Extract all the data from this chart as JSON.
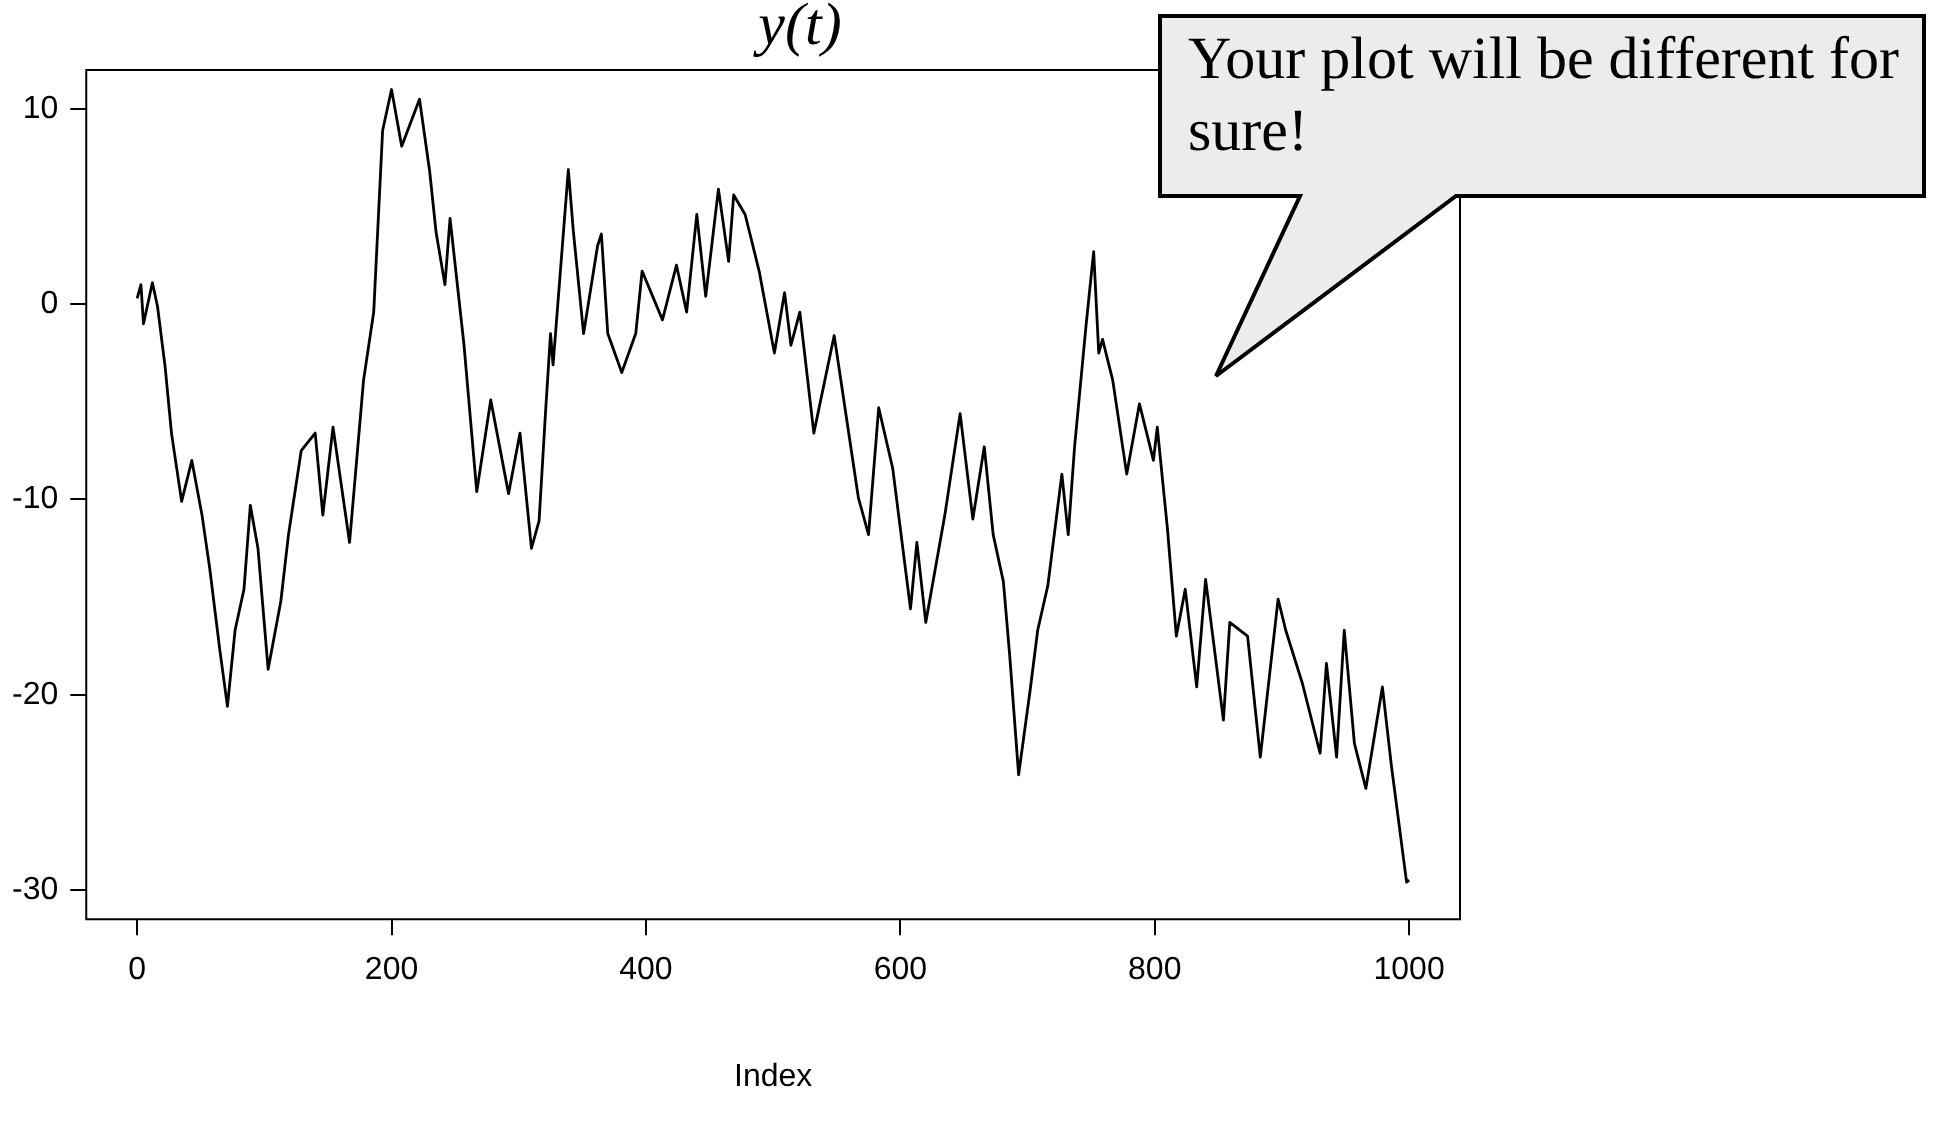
{
  "chart_data": {
    "type": "line",
    "title": "y(t)",
    "xlabel": "Index",
    "xlim": [
      -40,
      1040
    ],
    "ylim": [
      -31.5,
      12
    ],
    "xticks": [
      0,
      200,
      400,
      600,
      800,
      1000
    ],
    "yticks": [
      -30,
      -20,
      -10,
      0,
      10
    ],
    "grid": false,
    "legend": false,
    "marker": "none",
    "line_style": "solid",
    "annotations": [
      "Your plot will be different for sure!"
    ],
    "series": [
      {
        "color": "#000000",
        "x": [
          0,
          3,
          5,
          12,
          16,
          22,
          27,
          35,
          43,
          51,
          57,
          65,
          71,
          77,
          84,
          89,
          95,
          103,
          113,
          119,
          129,
          140,
          146,
          154,
          167,
          178,
          186,
          193,
          200,
          208,
          222,
          230,
          235,
          242,
          246,
          257,
          267,
          278,
          292,
          301,
          310,
          316,
          321,
          325,
          327,
          339,
          343,
          351,
          362,
          365,
          370,
          381,
          392,
          397,
          413,
          424,
          432,
          440,
          447,
          457,
          465,
          469,
          478,
          489,
          501,
          509,
          514,
          521,
          532,
          548,
          567,
          575,
          583,
          594,
          608,
          613,
          620,
          635,
          647,
          657,
          666,
          673,
          681,
          686,
          693,
          702,
          708,
          716,
          727,
          732,
          737,
          746,
          752,
          756,
          759,
          767,
          778,
          788,
          799,
          802,
          810,
          817,
          824,
          833,
          840,
          854,
          859,
          873,
          883,
          897,
          903,
          916,
          930,
          935,
          943,
          949,
          957,
          966,
          979,
          986,
          998,
          1000
        ],
        "values": [
          0.3,
          1.0,
          -1.0,
          1.1,
          -0.1,
          -3.2,
          -6.6,
          -10.1,
          -8.0,
          -10.8,
          -13.5,
          -17.7,
          -20.6,
          -16.7,
          -14.6,
          -10.3,
          -12.5,
          -18.7,
          -15.2,
          -11.8,
          -7.5,
          -6.6,
          -10.8,
          -6.3,
          -12.2,
          -3.9,
          -0.4,
          8.9,
          11.0,
          8.1,
          10.5,
          6.8,
          3.7,
          1.0,
          4.4,
          -2.1,
          -9.6,
          -4.9,
          -9.7,
          -6.6,
          -12.5,
          -11.1,
          -5.6,
          -1.5,
          -3.1,
          6.9,
          3.7,
          -1.5,
          3.0,
          3.6,
          -1.5,
          -3.5,
          -1.5,
          1.7,
          -0.8,
          2.0,
          -0.4,
          4.6,
          0.4,
          5.9,
          2.2,
          5.6,
          4.6,
          1.7,
          -2.5,
          0.6,
          -2.1,
          -0.4,
          -6.6,
          -1.6,
          -9.9,
          -11.8,
          -5.3,
          -8.4,
          -15.6,
          -12.2,
          -16.3,
          -10.8,
          -5.6,
          -11.0,
          -7.3,
          -11.8,
          -14.2,
          -18.0,
          -24.1,
          -19.8,
          -16.7,
          -14.4,
          -8.7,
          -11.8,
          -7.3,
          -1.1,
          2.7,
          -2.5,
          -1.8,
          -3.9,
          -8.7,
          -5.1,
          -8.0,
          -6.3,
          -11.5,
          -17.0,
          -14.6,
          -19.6,
          -14.1,
          -21.3,
          -16.3,
          -17.0,
          -23.2,
          -15.1,
          -16.7,
          -19.4,
          -23.0,
          -18.4,
          -23.2,
          -16.7,
          -22.5,
          -24.8,
          -19.6,
          -23.6,
          -29.6,
          -29.5
        ]
      }
    ]
  }
}
